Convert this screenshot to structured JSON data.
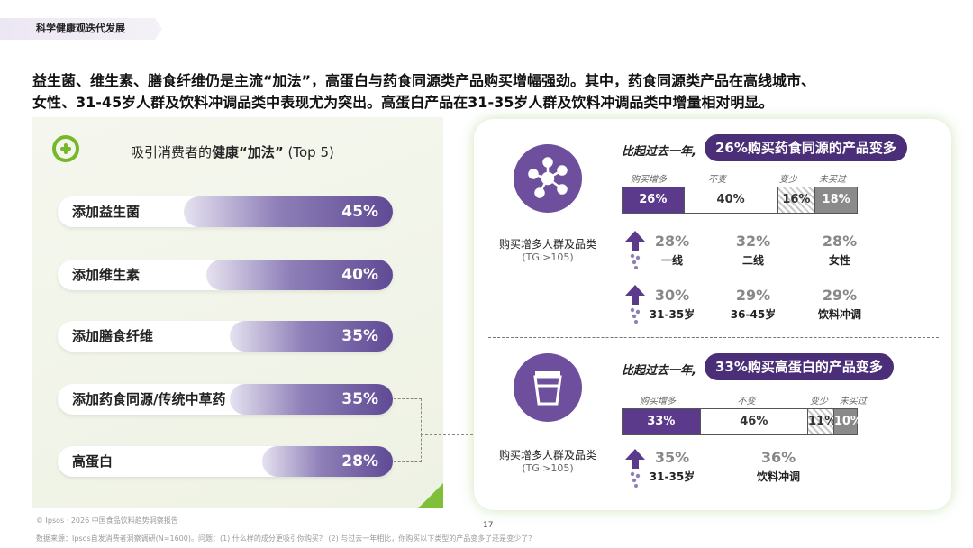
{
  "section_tab": "科学健康观迭代发展",
  "headline_line1": "益生菌、维生素、膳食纤维仍是主流“加法”，高蛋白与药食同源类产品购买增幅强劲。其中，药食同源类产品在高线城市、",
  "headline_line2": "女性、31-45岁人群及饮料冲调品类中表现尤为突出。高蛋白产品在31-35岁人群及饮料冲调品类中增量相对明显。",
  "left_title_prefix": "吸引消费者的",
  "left_title_bold": "健康“加法”",
  "left_title_suffix": "(Top 5)",
  "colors": {
    "accent_green": "#76b82a",
    "purple_dark": "#4a2f78",
    "purple": "#5b3a8c"
  },
  "chart_data": [
    {
      "type": "bar",
      "title": "吸引消费者的健康“加法”(Top 5)",
      "categories": [
        "添加益生菌",
        "添加维生素",
        "添加膳食纤维",
        "添加药食同源/传统中草药",
        "高蛋白"
      ],
      "values": [
        45,
        40,
        35,
        35,
        28
      ],
      "labels": [
        "45%",
        "40%",
        "35%",
        "35%",
        "28%"
      ],
      "unit": "%",
      "orientation": "horizontal"
    },
    {
      "type": "bar",
      "stacked": true,
      "compare_text": "比起过去一年,",
      "highlight": "26%购买药食同源的产品变多",
      "categories": [
        "购买增多",
        "不变",
        "变少",
        "未买过"
      ],
      "values": [
        26,
        40,
        16,
        18
      ],
      "labels": [
        "26%",
        "40%",
        "16%",
        "18%"
      ]
    },
    {
      "type": "bar",
      "stacked": true,
      "compare_text": "比起过去一年,",
      "highlight": "33%购买高蛋白的产品变多",
      "categories": [
        "购买增多",
        "不变",
        "变少",
        "未买过"
      ],
      "values": [
        33,
        46,
        11,
        10
      ],
      "labels": [
        "33%",
        "46%",
        "11%",
        "10%"
      ]
    }
  ],
  "group_label": "购买增多人群及品类",
  "group_sub": "(TGI>105)",
  "tcm_stats": [
    {
      "pct": "28%",
      "name": "一线"
    },
    {
      "pct": "32%",
      "name": "二线"
    },
    {
      "pct": "28%",
      "name": "女性"
    },
    {
      "pct": "30%",
      "name": "31-35岁"
    },
    {
      "pct": "29%",
      "name": "36-45岁"
    },
    {
      "pct": "29%",
      "name": "饮料冲调"
    }
  ],
  "protein_stats": [
    {
      "pct": "35%",
      "name": "31-35岁"
    },
    {
      "pct": "36%",
      "name": "饮料冲调"
    }
  ],
  "page_number": "17",
  "footer_source": "© Ipsos · 2026 中国食品饮料趋势洞察报告",
  "footer_data": "数据来源：Ipsos自发消费者洞察调研(N=1600)。问题：(1) 什么样的成分更吸引你购买？ (2) 与过去一年相比，你购买以下类型的产品变多了还是变少了？"
}
